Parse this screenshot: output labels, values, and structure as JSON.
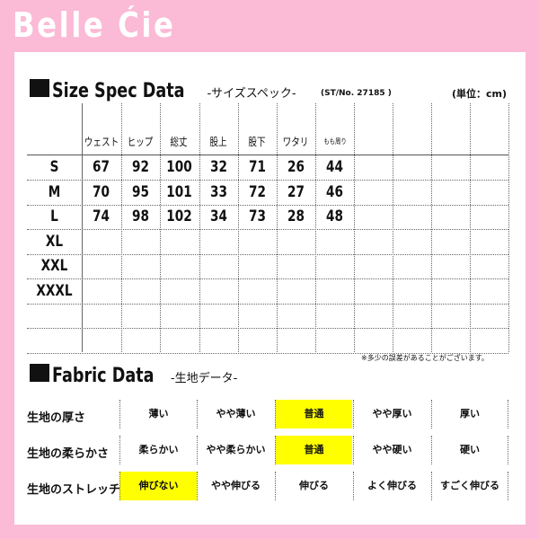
{
  "brand": "Belle Ćie",
  "size_spec": {
    "title": "Size Spec Data",
    "subtitle": "-サイズスペック-",
    "style_no": "(ST/No.  27185  )",
    "unit": "(単位：cm)",
    "columns": [
      "ウェスト",
      "ヒップ",
      "総丈",
      "股上",
      "股下",
      "ワタリ",
      "もも周り",
      "",
      "",
      "",
      ""
    ],
    "rows": [
      {
        "size": "S",
        "values": [
          "67",
          "92",
          "100",
          "32",
          "71",
          "26",
          "44"
        ]
      },
      {
        "size": "M",
        "values": [
          "70",
          "95",
          "101",
          "33",
          "72",
          "27",
          "46"
        ]
      },
      {
        "size": "L",
        "values": [
          "74",
          "98",
          "102",
          "34",
          "73",
          "28",
          "48"
        ]
      },
      {
        "size": "XL",
        "values": []
      },
      {
        "size": "XXL",
        "values": []
      },
      {
        "size": "XXXL",
        "values": []
      },
      {
        "size": "",
        "values": []
      },
      {
        "size": "",
        "values": []
      }
    ],
    "note": "※多少の誤差があることがございます。"
  },
  "fabric": {
    "title": "Fabric Data",
    "subtitle": "-生地データ-",
    "highlight_color": "#ffff00",
    "rows": [
      {
        "label": "生地の厚さ",
        "options": [
          "薄い",
          "やや薄い",
          "普通",
          "やや厚い",
          "厚い"
        ],
        "selected": 2
      },
      {
        "label": "生地の柔らかさ",
        "options": [
          "柔らかい",
          "やや柔らかい",
          "普通",
          "やや硬い",
          "硬い"
        ],
        "selected": 2
      },
      {
        "label": "生地のストレッチ性",
        "options": [
          "伸びない",
          "やや伸びる",
          "伸びる",
          "よく伸びる",
          "すごく伸びる"
        ],
        "selected": 0
      }
    ]
  }
}
